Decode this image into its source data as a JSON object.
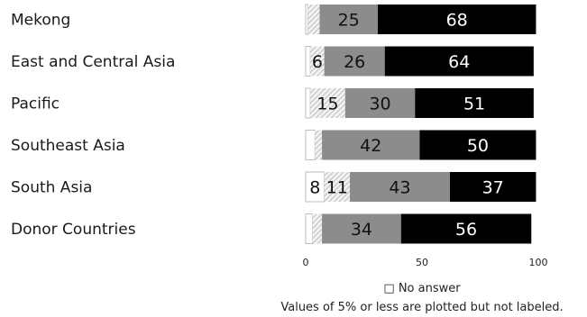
{
  "chart_data": {
    "type": "bar",
    "orientation": "horizontal",
    "stacked": true,
    "categories": [
      "Mekong",
      "East and Central Asia",
      "Pacific",
      "Southeast Asia",
      "South Asia",
      "Donor Countries"
    ],
    "series": [
      {
        "name": "No answer",
        "color": "#ffffff",
        "pattern": "outline",
        "values": [
          1,
          2,
          2,
          4,
          8,
          3
        ]
      },
      {
        "color": "#e6e6e6",
        "pattern": "diagonal-hatch",
        "values": [
          5,
          6,
          15,
          3,
          11,
          4
        ]
      },
      {
        "color": "#8c8c8c",
        "values": [
          25,
          26,
          30,
          42,
          43,
          34
        ]
      },
      {
        "color": "#000000",
        "values": [
          68,
          64,
          51,
          50,
          37,
          56
        ]
      }
    ],
    "xlim": [
      0,
      100
    ],
    "xticks": [
      0,
      50,
      100
    ],
    "label_threshold": 5,
    "grid": false,
    "legend": {
      "symbol": "□",
      "text": "No answer",
      "placement": "bottom-center"
    },
    "note": "Values of 5% or less are plotted but not labeled."
  }
}
